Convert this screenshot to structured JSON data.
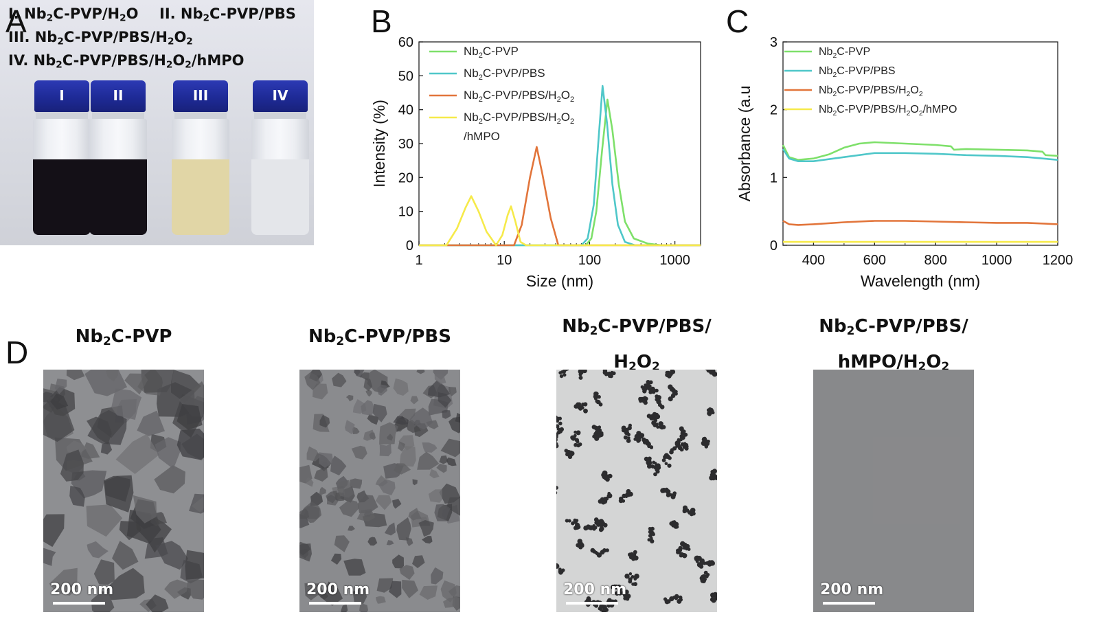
{
  "panels": {
    "a_letter": "A",
    "b_letter": "B",
    "c_letter": "C",
    "d_letter": "D"
  },
  "photo_a": {
    "labels": [
      {
        "pre": "I. Nb",
        "sub1": "2",
        "mid": "C-PVP/H",
        "sub2": "2",
        "post": "O"
      },
      {
        "pre": "II. Nb",
        "sub1": "2",
        "mid": "C-PVP/PBS",
        "sub2": "",
        "post": ""
      },
      {
        "pre": "III. Nb",
        "sub1": "2",
        "mid": "C-PVP/PBS/H",
        "sub2": "2",
        "post": "O",
        "sub3": "2"
      },
      {
        "pre": "IV. Nb",
        "sub1": "2",
        "mid": "C-PVP/PBS/H",
        "sub2": "2",
        "post": "O",
        "sub3": "2",
        "tail": "/hMPO"
      }
    ],
    "vials": [
      {
        "label": "I",
        "liquid": "#141017"
      },
      {
        "label": "II",
        "liquid": "#141017"
      },
      {
        "label": "III",
        "liquid": "#e1d6a6"
      },
      {
        "label": "IV",
        "liquid": "#e4e6ea"
      }
    ]
  },
  "chart_data": [
    {
      "type": "line",
      "panel": "B",
      "xlabel": "Size (nm)",
      "ylabel": "Intensity (%)",
      "xscale": "log",
      "xlim": [
        1,
        2000
      ],
      "ylim": [
        0,
        60
      ],
      "xticks": [
        1,
        10,
        100,
        1000
      ],
      "yticks": [
        0,
        10,
        20,
        30,
        40,
        50,
        60
      ],
      "legend_position": "top-left",
      "series": [
        {
          "name": "Nb2C-PVP",
          "color": "#7ee06a",
          "x": [
            1,
            90,
            105,
            120,
            140,
            162,
            185,
            220,
            260,
            330,
            480,
            700,
            2000
          ],
          "y": [
            0,
            0,
            2,
            10,
            28,
            43,
            34,
            18,
            7,
            2,
            0.5,
            0,
            0
          ]
        },
        {
          "name": "Nb2C-PVP/PBS",
          "color": "#4fc7c9",
          "x": [
            1,
            80,
            95,
            112,
            128,
            142,
            160,
            185,
            215,
            260,
            340,
            2000
          ],
          "y": [
            0,
            0,
            2,
            12,
            32,
            47,
            36,
            18,
            6,
            1,
            0,
            0
          ]
        },
        {
          "name": "Nb2C-PVP/PBS/H2O2",
          "color": "#e2753b",
          "x": [
            1,
            13,
            16,
            20,
            24,
            28,
            35,
            43,
            2000
          ],
          "y": [
            0,
            0,
            6,
            20,
            29,
            21,
            8,
            0,
            0
          ]
        },
        {
          "name": "Nb2C-PVP/PBS/H2O2/hMPO",
          "color": "#f6ea4a",
          "x": [
            1,
            2.1,
            2.8,
            3.5,
            4.1,
            5,
            6.2,
            8,
            9.5,
            11,
            12,
            13.5,
            15.5,
            18,
            2000
          ],
          "y": [
            0,
            0,
            5,
            11,
            14.5,
            10,
            4,
            0,
            3,
            9,
            11.5,
            7,
            1,
            0,
            0
          ]
        }
      ]
    },
    {
      "type": "line",
      "panel": "C",
      "xlabel": "Wavelength (nm)",
      "ylabel": "Absorbance (a.u",
      "xlim": [
        300,
        1200
      ],
      "ylim": [
        0,
        3
      ],
      "xticks": [
        400,
        600,
        800,
        1000,
        1200
      ],
      "yticks": [
        0,
        1,
        2,
        3
      ],
      "legend_position": "top-left",
      "series": [
        {
          "name": "Nb2C-PVP",
          "color": "#7ee06a",
          "x": [
            300,
            320,
            350,
            400,
            450,
            500,
            550,
            600,
            700,
            800,
            850,
            860,
            900,
            1000,
            1100,
            1150,
            1160,
            1200
          ],
          "y": [
            1.48,
            1.3,
            1.26,
            1.28,
            1.34,
            1.44,
            1.5,
            1.52,
            1.5,
            1.48,
            1.46,
            1.41,
            1.42,
            1.41,
            1.4,
            1.38,
            1.33,
            1.32
          ]
        },
        {
          "name": "Nb2C-PVP/PBS",
          "color": "#4fc7c9",
          "x": [
            300,
            320,
            350,
            400,
            500,
            600,
            700,
            800,
            900,
            1000,
            1100,
            1200
          ],
          "y": [
            1.42,
            1.28,
            1.24,
            1.24,
            1.3,
            1.36,
            1.36,
            1.35,
            1.33,
            1.32,
            1.3,
            1.26
          ]
        },
        {
          "name": "Nb2C-PVP/PBS/H2O2",
          "color": "#e2753b",
          "x": [
            300,
            320,
            350,
            400,
            500,
            600,
            700,
            800,
            900,
            1000,
            1100,
            1200
          ],
          "y": [
            0.36,
            0.31,
            0.3,
            0.31,
            0.34,
            0.36,
            0.36,
            0.35,
            0.34,
            0.33,
            0.33,
            0.31
          ]
        },
        {
          "name": "Nb2C-PVP/PBS/H2O2/hMPO",
          "color": "#f6ea4a",
          "x": [
            300,
            400,
            600,
            800,
            1000,
            1200
          ],
          "y": [
            0.05,
            0.05,
            0.05,
            0.05,
            0.05,
            0.05
          ]
        }
      ]
    }
  ],
  "legend_b": [
    {
      "a": "Nb",
      "s1": "2",
      "b": "C-PVP"
    },
    {
      "a": "Nb",
      "s1": "2",
      "b": "C-PVP/PBS"
    },
    {
      "a": "Nb",
      "s1": "2",
      "b": "C-PVP/PBS/H",
      "s2": "2",
      "c": "O",
      "s3": "2"
    },
    {
      "a": "Nb",
      "s1": "2",
      "b": "C-PVP/PBS/H",
      "s2": "2",
      "c": "O",
      "s3": "2",
      "line2": "/hMPO"
    }
  ],
  "legend_c": [
    {
      "a": "Nb",
      "s1": "2",
      "b": "C-PVP"
    },
    {
      "a": "Nb",
      "s1": "2",
      "b": "C-PVP/PBS"
    },
    {
      "a": "Nb",
      "s1": "2",
      "b": "C-PVP/PBS/H",
      "s2": "2",
      "c": "O",
      "s3": "2"
    },
    {
      "a": "Nb",
      "s1": "2",
      "b": "C-PVP/PBS/H",
      "s2": "2",
      "c": "O",
      "s3": "2",
      "tail": "/hMPO"
    }
  ],
  "tem": [
    {
      "title_l1_pre": "Nb",
      "title_l1_sub": "2",
      "title_l1_post": "C-PVP",
      "scalebar": "200 nm",
      "bg": "#8e8f92"
    },
    {
      "title_l1_pre": "Nb",
      "title_l1_sub": "2",
      "title_l1_post": "C-PVP/PBS",
      "scalebar": "200 nm",
      "bg": "#8a8b8e"
    },
    {
      "title_l1_pre": "Nb",
      "title_l1_sub": "2",
      "title_l1_post": "C-PVP/PBS/",
      "title_l2_pre": "H",
      "title_l2_sub": "2",
      "title_l2_post": "O",
      "title_l2_sub2": "2",
      "scalebar": "200 nm",
      "bg": "#d4d5d5"
    },
    {
      "title_l1_pre": "Nb",
      "title_l1_sub": "2",
      "title_l1_post": "C-PVP/PBS/",
      "title_l2_pre": "hMPO/H",
      "title_l2_sub": "2",
      "title_l2_post": "O",
      "title_l2_sub2": "2",
      "scalebar": "200 nm",
      "bg": "#8d8d8f"
    }
  ]
}
